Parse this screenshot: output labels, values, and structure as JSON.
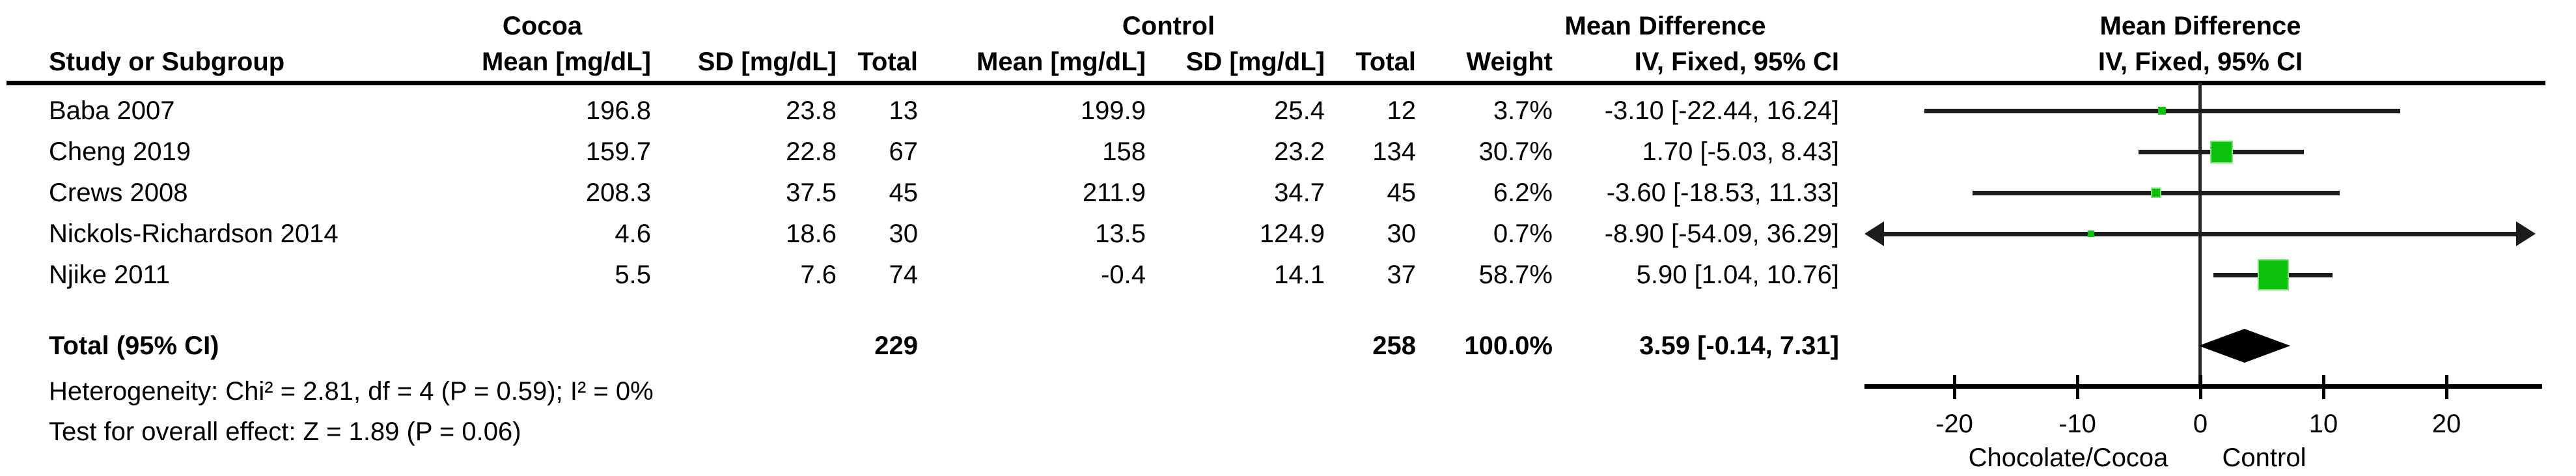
{
  "header": {
    "study_col": "Study or Subgroup",
    "cocoa_group": "Cocoa",
    "control_group": "Control",
    "md_table": "Mean Difference",
    "md_plot": "Mean Difference",
    "cols": [
      "Mean [mg/dL]",
      "SD [mg/dL]",
      "Total",
      "Mean [mg/dL]",
      "SD [mg/dL]",
      "Total",
      "Weight",
      "IV, Fixed, 95% CI"
    ],
    "plot_col": "IV, Fixed, 95% CI"
  },
  "chart_data": {
    "type": "forest",
    "effect_measure": "Mean Difference, IV, Fixed, 95% CI, mg/dL",
    "studies": [
      {
        "name": "Baba 2007",
        "cocoa": {
          "mean": "196.8",
          "sd": "23.8",
          "total": "13"
        },
        "control": {
          "mean": "199.9",
          "sd": "25.4",
          "total": "12"
        },
        "weight": "3.7%",
        "weight_pct": 3.7,
        "ci_label": "-3.10 [-22.44, 16.24]",
        "est": -3.1,
        "lo": -22.44,
        "hi": 16.24
      },
      {
        "name": "Cheng 2019",
        "cocoa": {
          "mean": "159.7",
          "sd": "22.8",
          "total": "67"
        },
        "control": {
          "mean": "158",
          "sd": "23.2",
          "total": "134"
        },
        "weight": "30.7%",
        "weight_pct": 30.7,
        "ci_label": "1.70 [-5.03, 8.43]",
        "est": 1.7,
        "lo": -5.03,
        "hi": 8.43
      },
      {
        "name": "Crews 2008",
        "cocoa": {
          "mean": "208.3",
          "sd": "37.5",
          "total": "45"
        },
        "control": {
          "mean": "211.9",
          "sd": "34.7",
          "total": "45"
        },
        "weight": "6.2%",
        "weight_pct": 6.2,
        "ci_label": "-3.60 [-18.53, 11.33]",
        "est": -3.6,
        "lo": -18.53,
        "hi": 11.33
      },
      {
        "name": "Nickols-Richardson 2014",
        "cocoa": {
          "mean": "4.6",
          "sd": "18.6",
          "total": "30"
        },
        "control": {
          "mean": "13.5",
          "sd": "124.9",
          "total": "30"
        },
        "weight": "0.7%",
        "weight_pct": 0.7,
        "ci_label": "-8.90 [-54.09, 36.29]",
        "est": -8.9,
        "lo": -54.09,
        "hi": 36.29
      },
      {
        "name": "Njike 2011",
        "cocoa": {
          "mean": "5.5",
          "sd": "7.6",
          "total": "74"
        },
        "control": {
          "mean": "-0.4",
          "sd": "14.1",
          "total": "37"
        },
        "weight": "58.7%",
        "weight_pct": 58.7,
        "ci_label": "5.90 [1.04, 10.76]",
        "est": 5.9,
        "lo": 1.04,
        "hi": 10.76
      }
    ],
    "total": {
      "label": "Total (95% CI)",
      "cocoa_total": "229",
      "control_total": "258",
      "weight": "100.0%",
      "ci_label": "3.59 [-0.14, 7.31]",
      "est": 3.59,
      "lo": -0.14,
      "hi": 7.31
    },
    "axis": {
      "tick_labels": [
        "-20",
        "-10",
        "0",
        "10",
        "20"
      ],
      "tick_values": [
        -20,
        -10,
        0,
        10,
        20
      ],
      "min": -27.3,
      "max": 27.2,
      "label_left": "Chocolate/Cocoa",
      "label_right": "Control",
      "grid": false
    },
    "colors": {
      "square": "#0bc10b",
      "square_border": "#7de37d",
      "ci_line": "#1c1c1c",
      "diamond": "#000000",
      "axis": "#000000"
    }
  },
  "footer": {
    "heterogeneity": "Heterogeneity: Chi² = 2.81, df = 4 (P = 0.59); I² = 0%",
    "overall_effect": "Test for overall effect: Z = 1.89 (P = 0.06)"
  }
}
